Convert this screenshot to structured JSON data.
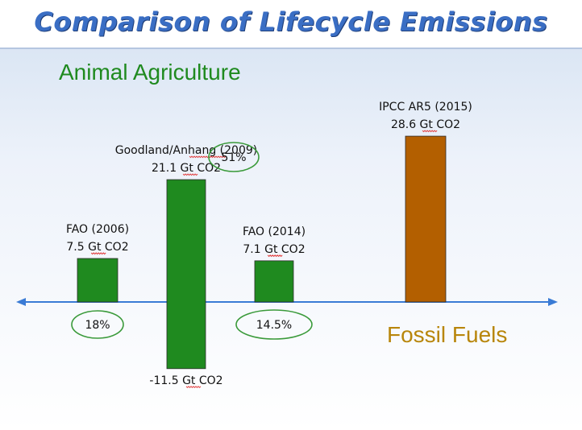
{
  "title": "Comparison of Lifecycle Emissions",
  "group_labels": {
    "animal": "Animal Agriculture",
    "fossil": "Fossil Fuels"
  },
  "colors": {
    "animal": "#1f8a1f",
    "fossil": "#b35f00",
    "axis": "#3a7bd5",
    "oval": "#3a9a3a",
    "title": "#3a6ec4"
  },
  "chart_data": {
    "type": "bar",
    "ylabel": "",
    "xlabel": "",
    "bars": [
      {
        "id": "fao2006",
        "source": "FAO (2006)",
        "value": 7.5,
        "value_label": "7.5 Gt CO2",
        "group": "animal",
        "percent": "18%"
      },
      {
        "id": "goodland",
        "source": "Goodland/Anhang (2009)",
        "value": 21.1,
        "neg_value": -11.5,
        "value_label": "21.1 Gt CO2",
        "neg_label": "-11.5 Gt CO2",
        "group": "animal",
        "percent": "51%"
      },
      {
        "id": "fao2014",
        "source": "FAO (2014)",
        "value": 7.1,
        "value_label": "7.1 Gt CO2",
        "group": "animal",
        "percent": "14.5%"
      },
      {
        "id": "ipcc",
        "source": "IPCC AR5 (2015)",
        "value": 28.6,
        "value_label": "28.6 Gt CO2",
        "group": "fossil"
      }
    ],
    "grid": false,
    "legend": "none"
  }
}
